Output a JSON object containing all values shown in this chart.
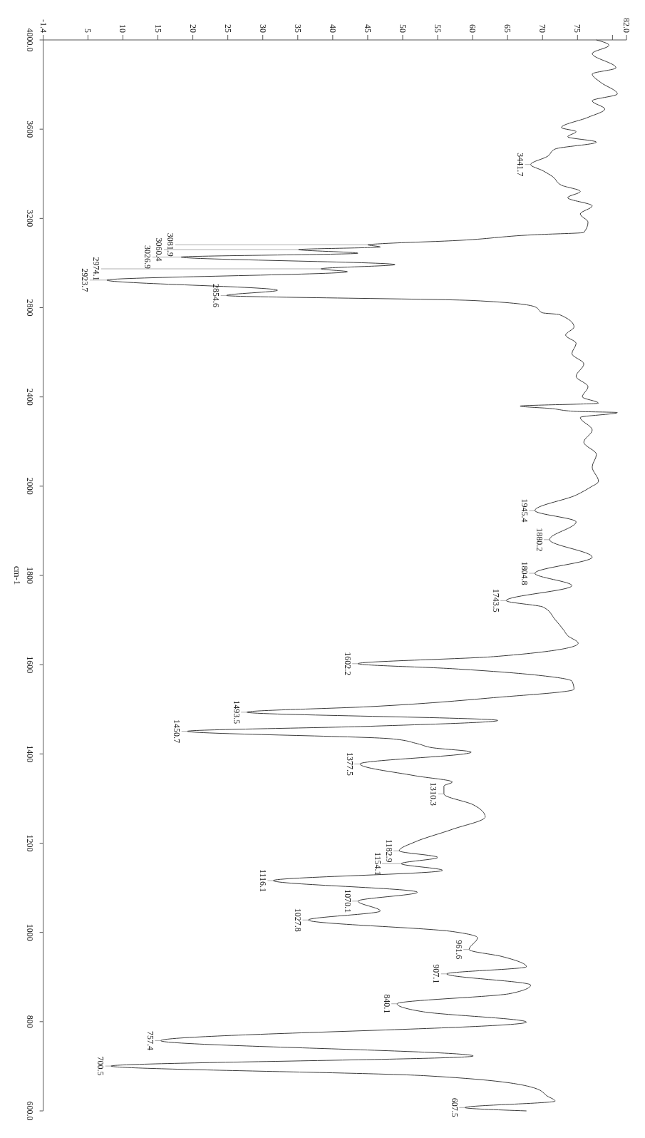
{
  "chart_data": [
    {
      "type": "line",
      "orientation": "horizontal",
      "color": "#3a3a3a",
      "ylim": [
        2000,
        4000
      ],
      "yticks": [
        {
          "value": 4000,
          "label": "4000.0"
        },
        3600,
        3200,
        2800,
        2400,
        2000
      ],
      "xlim": [
        -1.4,
        82
      ],
      "xticks": [
        -1.4,
        5,
        10,
        15,
        20,
        25,
        30,
        35,
        40,
        45,
        50,
        55,
        60,
        65,
        70,
        75,
        {
          "value": 80,
          "label": null
        },
        {
          "value": 82,
          "label": "82.0"
        }
      ],
      "x": [
        4000,
        3976,
        3939,
        3875,
        3847,
        3810,
        3758,
        3727,
        3690,
        3653,
        3607,
        3589,
        3566,
        3542,
        3511,
        3478,
        3441.7,
        3413,
        3386,
        3349,
        3321,
        3293,
        3256,
        3220,
        3183,
        3137,
        3127,
        3100,
        3087,
        3081.9,
        3072,
        3060.4,
        3044,
        3026.9,
        2993,
        2974.1,
        2961,
        2923.7,
        2878,
        2854.6,
        2832,
        2804,
        2777,
        2769,
        2714,
        2677,
        2640,
        2594,
        2548,
        2492,
        2446,
        2400,
        2372,
        2359,
        2348,
        2335,
        2330,
        2308,
        2252,
        2197,
        2142,
        2086,
        2022,
        2000
      ],
      "values": [
        77.7,
        79.5,
        77.1,
        80.5,
        77.1,
        78.3,
        80.7,
        77.1,
        78.9,
        76.5,
        72.7,
        74.8,
        73.6,
        77.7,
        71.8,
        70.7,
        68.3,
        70.1,
        71.5,
        72.7,
        75.4,
        73.6,
        77.1,
        75.4,
        76.5,
        75.9,
        68.9,
        57.1,
        47.1,
        45,
        46.8,
        35.1,
        43.6,
        18.3,
        48.9,
        38.3,
        42.1,
        7.7,
        32.1,
        24.8,
        60.1,
        68.9,
        70,
        72.4,
        74.5,
        73.3,
        74.8,
        74.2,
        75.9,
        74.8,
        76.5,
        75.7,
        78,
        66.8,
        71.2,
        74.8,
        80.7,
        75.4,
        77.1,
        75.9,
        77.7,
        77.1,
        78,
        77.1
      ],
      "annotations": [
        {
          "text": "3441.7",
          "y": 3441.7,
          "x": 68.3
        },
        {
          "text": "3081.9",
          "y": 3081.9,
          "x": 45
        },
        {
          "text": "3060.4",
          "y": 3060.4,
          "x": 35.1
        },
        {
          "text": "3026.9",
          "y": 3026.9,
          "x": 18.3
        },
        {
          "text": "2974.1",
          "y": 2974.1,
          "x": 38.3
        },
        {
          "text": "2923.7",
          "y": 2923.7,
          "x": 7.7
        },
        {
          "text": "2854.6",
          "y": 2854.6,
          "x": 24.8
        }
      ]
    },
    {
      "type": "line",
      "orientation": "horizontal",
      "ylabel": "cm-1",
      "color": "#3a3a3a",
      "tick_labels": "y",
      "ylim": [
        600,
        2000
      ],
      "yticks": [
        1800,
        1600,
        1400,
        1200,
        1000,
        800,
        {
          "value": 600,
          "label": "600.0"
        }
      ],
      "xlim": [
        -1.4,
        82
      ],
      "x": [
        2000,
        1980,
        1945.4,
        1920,
        1880.2,
        1841,
        1804.8,
        1777,
        1743.5,
        1729,
        1701,
        1678,
        1665,
        1648,
        1618,
        1602.2,
        1591,
        1577,
        1563,
        1545,
        1526,
        1506,
        1493.5,
        1475,
        1462,
        1450.7,
        1434,
        1423,
        1414,
        1404,
        1377.5,
        1351,
        1337,
        1328,
        1310.3,
        1286,
        1259,
        1231,
        1203,
        1182.9,
        1168,
        1154.1,
        1139,
        1116.1,
        1090,
        1070.1,
        1048,
        1027.8,
        1002,
        988,
        961.6,
        946,
        923,
        907.1,
        882,
        863,
        840.1,
        822,
        799,
        757.4,
        723,
        700.5,
        679,
        651,
        633,
        622,
        607.5,
        600
      ],
      "values": [
        77.1,
        74.8,
        68.9,
        74.8,
        71,
        77.1,
        68.9,
        74.2,
        64.8,
        70.1,
        71.8,
        73,
        73.6,
        75.1,
        63,
        43.6,
        57.1,
        68.9,
        74.2,
        74.5,
        63,
        45.4,
        27.7,
        63.6,
        45.4,
        19.2,
        48.3,
        52.1,
        54.2,
        59.8,
        43.9,
        51.8,
        57.1,
        55.9,
        55.9,
        60.1,
        61.8,
        57.1,
        51.8,
        49.5,
        55,
        49.8,
        55.7,
        31.5,
        52.1,
        43.6,
        46.8,
        36.5,
        57.1,
        60.7,
        59.5,
        64.2,
        67.7,
        56.3,
        68.3,
        65.4,
        49.2,
        53,
        67.7,
        15.4,
        60.1,
        8.3,
        53,
        68.9,
        70.7,
        71.8,
        58.9,
        67.7
      ],
      "annotations": [
        {
          "text": "1945.4",
          "y": 1945.4,
          "x": 68.9
        },
        {
          "text": "1880.2",
          "y": 1880.2,
          "x": 71
        },
        {
          "text": "1804.8",
          "y": 1804.8,
          "x": 68.9
        },
        {
          "text": "1743.5",
          "y": 1743.5,
          "x": 64.8
        },
        {
          "text": "1602.2",
          "y": 1602.2,
          "x": 43.6
        },
        {
          "text": "1493.5",
          "y": 1493.5,
          "x": 27.7
        },
        {
          "text": "1450.7",
          "y": 1450.7,
          "x": 19.2
        },
        {
          "text": "1377.5",
          "y": 1377.5,
          "x": 43.9
        },
        {
          "text": "1310.3",
          "y": 1310.3,
          "x": 55.9
        },
        {
          "text": "1182.9",
          "y": 1182.9,
          "x": 49.5
        },
        {
          "text": "1154.1",
          "y": 1154.1,
          "x": 49.8
        },
        {
          "text": "1116.1",
          "y": 1116.1,
          "x": 31.5
        },
        {
          "text": "1070.1",
          "y": 1070.1,
          "x": 43.6
        },
        {
          "text": "1027.8",
          "y": 1027.8,
          "x": 36.5
        },
        {
          "text": "961.6",
          "y": 961.6,
          "x": 59.5
        },
        {
          "text": "907.1",
          "y": 907.1,
          "x": 56.3
        },
        {
          "text": "840.1",
          "y": 840.1,
          "x": 49.2
        },
        {
          "text": "757.4",
          "y": 757.4,
          "x": 15.4
        },
        {
          "text": "700.5",
          "y": 700.5,
          "x": 8.3
        },
        {
          "text": "607.5",
          "y": 607.5,
          "x": 58.9
        }
      ]
    }
  ]
}
